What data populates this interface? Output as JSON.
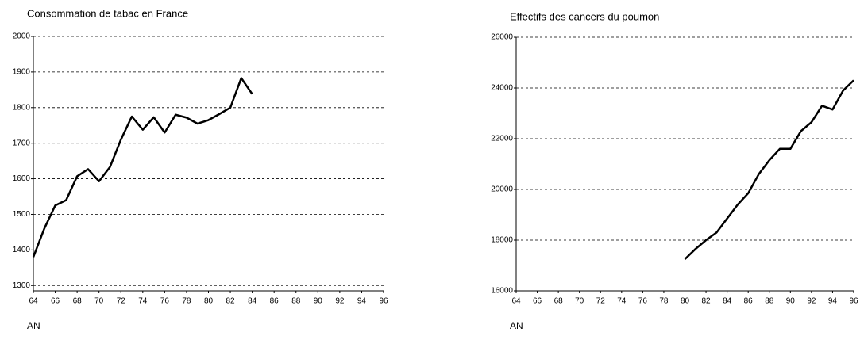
{
  "chart_data": [
    {
      "type": "line",
      "title": "Consommation de tabac en France",
      "x_label": "AN",
      "x": [
        64,
        65,
        66,
        67,
        68,
        69,
        70,
        71,
        72,
        73,
        74,
        75,
        76,
        77,
        78,
        79,
        80,
        81,
        82,
        83,
        84,
        85
      ],
      "values": [
        1380,
        1460,
        1525,
        1540,
        1607,
        1627,
        1593,
        1633,
        1710,
        1775,
        1738,
        1773,
        1730,
        1780,
        1772,
        1755,
        1765,
        1782,
        1800,
        1883,
        1838,
        null
      ],
      "color": "#000000",
      "xlim": [
        64,
        96
      ],
      "xticks": [
        64,
        66,
        68,
        70,
        72,
        74,
        76,
        78,
        80,
        82,
        84,
        86,
        88,
        90,
        92,
        94,
        96
      ],
      "ylim": [
        1285,
        2000
      ],
      "yticks": [
        1300,
        1400,
        1500,
        1600,
        1700,
        1800,
        1900,
        2000
      ],
      "grid": true
    },
    {
      "type": "line",
      "title": "Effectifs des cancers du poumon",
      "x_label": "AN",
      "x": [
        80,
        81,
        82,
        83,
        84,
        85,
        86,
        87,
        88,
        89,
        90,
        91,
        92,
        93,
        94,
        95,
        96
      ],
      "values": [
        17250,
        17650,
        18000,
        18300,
        18850,
        19400,
        19850,
        20600,
        21150,
        21600,
        21600,
        22300,
        22650,
        23300,
        23150,
        23900,
        24300
      ],
      "color": "#000000",
      "xlim": [
        64,
        96
      ],
      "xticks": [
        64,
        66,
        68,
        70,
        72,
        74,
        76,
        78,
        80,
        82,
        84,
        86,
        88,
        90,
        92,
        94,
        96
      ],
      "ylim": [
        16000,
        26000
      ],
      "yticks": [
        16000,
        18000,
        20000,
        22000,
        24000,
        26000
      ],
      "grid": true
    }
  ]
}
